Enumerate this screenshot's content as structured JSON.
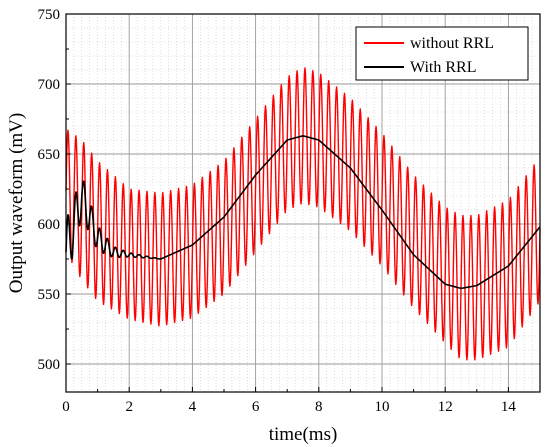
{
  "chart_data": {
    "type": "line",
    "title": "",
    "xlabel": "time(ms)",
    "ylabel": "Output waveform (mV)",
    "xlim": [
      0,
      15
    ],
    "ylim": [
      480,
      750
    ],
    "xticks": [
      0,
      2,
      4,
      6,
      8,
      10,
      12,
      14
    ],
    "yticks": [
      500,
      550,
      600,
      650,
      700,
      750
    ],
    "grid": true,
    "legend_position": "top-right",
    "series": [
      {
        "name": "without RRL",
        "color": "#ff0000",
        "description_points": {
          "x": [
            0,
            0.5,
            1,
            2,
            3,
            4,
            5,
            6,
            7,
            7.5,
            8,
            9,
            10,
            11,
            12,
            12.5,
            13,
            14,
            15
          ],
          "upper_envelope": [
            668,
            660,
            645,
            625,
            622,
            628,
            645,
            675,
            705,
            712,
            708,
            690,
            665,
            635,
            612,
            606,
            606,
            617,
            648
          ],
          "lower_envelope": [
            580,
            560,
            545,
            532,
            527,
            533,
            550,
            580,
            610,
            615,
            612,
            595,
            570,
            540,
            515,
            503,
            503,
            512,
            545
          ],
          "ripple_period_ms": 0.25
        }
      },
      {
        "name": "With RRL",
        "color": "#000000",
        "description_points": {
          "x": [
            0,
            0.5,
            1,
            1.5,
            2,
            3,
            4,
            5,
            6,
            7,
            7.5,
            8,
            9,
            10,
            11,
            12,
            12.5,
            13,
            14,
            15
          ],
          "y": [
            580,
            620,
            590,
            580,
            578,
            575,
            585,
            605,
            635,
            660,
            663,
            660,
            640,
            610,
            578,
            557,
            554,
            556,
            570,
            598
          ],
          "initial_oscillation_amplitude": [
            45,
            30,
            18,
            8,
            3,
            0
          ]
        }
      }
    ]
  }
}
